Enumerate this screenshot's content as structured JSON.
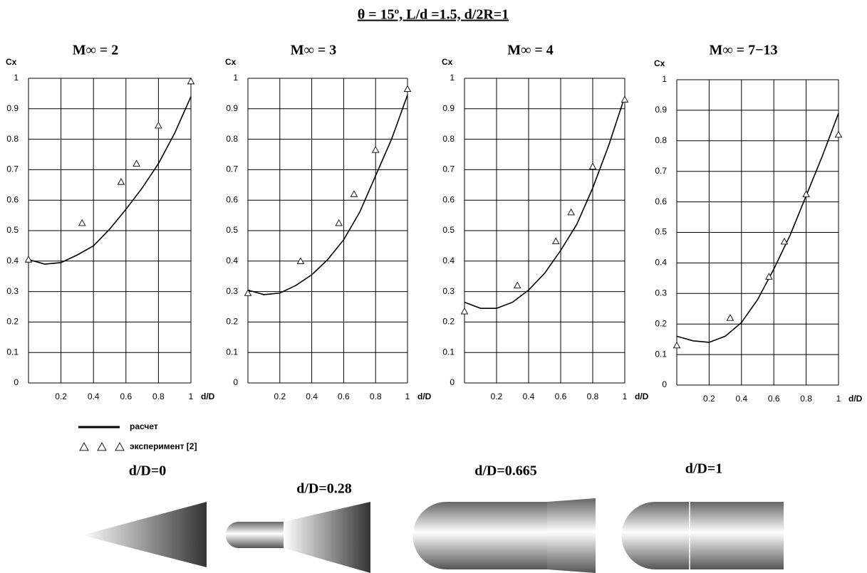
{
  "title": "θ = 15º, L/d =1.5, d/2R=1",
  "chart_data": [
    {
      "type": "line",
      "title": "M∞ = 2",
      "ylabel": "Cx",
      "xlabel": "d/D",
      "xlim": [
        0,
        1
      ],
      "ylim": [
        0,
        1
      ],
      "xticks": [
        0.2,
        0.4,
        0.6,
        0.8,
        1
      ],
      "yticks": [
        0,
        0.1,
        0.2,
        0.3,
        0.4,
        0.5,
        0.6,
        0.7,
        0.8,
        0.9,
        1
      ],
      "grid": true,
      "series": [
        {
          "style": "line",
          "color": "#000000",
          "x": [
            0,
            0.1,
            0.2,
            0.3,
            0.4,
            0.5,
            0.6,
            0.7,
            0.8,
            0.9,
            1
          ],
          "values": [
            0.405,
            0.39,
            0.395,
            0.42,
            0.45,
            0.505,
            0.57,
            0.64,
            0.72,
            0.82,
            0.94
          ]
        },
        {
          "style": "triangle",
          "color": "#000000",
          "x": [
            0,
            0.33,
            0.57,
            0.665,
            0.8,
            1
          ],
          "values": [
            0.405,
            0.525,
            0.66,
            0.72,
            0.845,
            0.99
          ]
        }
      ]
    },
    {
      "type": "line",
      "title": "M∞ = 3",
      "ylabel": "Cx",
      "xlabel": "d/D",
      "xlim": [
        0,
        1
      ],
      "ylim": [
        0,
        1
      ],
      "xticks": [
        0.2,
        0.4,
        0.6,
        0.8,
        1
      ],
      "yticks": [
        0,
        0.1,
        0.2,
        0.3,
        0.4,
        0.5,
        0.6,
        0.7,
        0.8,
        0.9,
        1
      ],
      "grid": true,
      "series": [
        {
          "style": "line",
          "color": "#000000",
          "x": [
            0,
            0.1,
            0.2,
            0.3,
            0.4,
            0.5,
            0.6,
            0.7,
            0.8,
            0.9,
            1
          ],
          "values": [
            0.305,
            0.29,
            0.295,
            0.32,
            0.355,
            0.405,
            0.47,
            0.56,
            0.68,
            0.8,
            0.945
          ]
        },
        {
          "style": "triangle",
          "color": "#000000",
          "x": [
            0,
            0.33,
            0.57,
            0.665,
            0.8,
            1
          ],
          "values": [
            0.295,
            0.4,
            0.525,
            0.62,
            0.765,
            0.965
          ]
        }
      ]
    },
    {
      "type": "line",
      "title": "M∞ = 4",
      "ylabel": "Cx",
      "xlabel": "d/D",
      "xlim": [
        0,
        1
      ],
      "ylim": [
        0,
        1
      ],
      "xticks": [
        0.2,
        0.4,
        0.6,
        0.8,
        1
      ],
      "yticks": [
        0,
        0.1,
        0.2,
        0.3,
        0.4,
        0.5,
        0.6,
        0.7,
        0.8,
        0.9,
        1
      ],
      "grid": true,
      "series": [
        {
          "style": "line",
          "color": "#000000",
          "x": [
            0,
            0.1,
            0.2,
            0.3,
            0.4,
            0.5,
            0.6,
            0.7,
            0.8,
            0.9,
            1
          ],
          "values": [
            0.265,
            0.245,
            0.245,
            0.265,
            0.305,
            0.36,
            0.435,
            0.52,
            0.64,
            0.78,
            0.94
          ]
        },
        {
          "style": "triangle",
          "color": "#000000",
          "x": [
            0,
            0.33,
            0.57,
            0.665,
            0.8,
            1
          ],
          "values": [
            0.235,
            0.32,
            0.465,
            0.56,
            0.71,
            0.93
          ]
        }
      ]
    },
    {
      "type": "line",
      "title": "M∞ = 7−13",
      "ylabel": "Cx",
      "xlabel": "d/D",
      "xlim": [
        0,
        1
      ],
      "ylim": [
        0,
        1
      ],
      "xticks": [
        0.2,
        0.4,
        0.6,
        0.8,
        1
      ],
      "yticks": [
        0,
        0.1,
        0.2,
        0.3,
        0.4,
        0.5,
        0.6,
        0.7,
        0.8,
        0.9,
        1
      ],
      "grid": true,
      "series": [
        {
          "style": "line",
          "color": "#000000",
          "x": [
            0,
            0.1,
            0.2,
            0.3,
            0.4,
            0.5,
            0.6,
            0.7,
            0.8,
            0.9,
            1
          ],
          "values": [
            0.16,
            0.145,
            0.14,
            0.16,
            0.205,
            0.28,
            0.38,
            0.49,
            0.62,
            0.75,
            0.89
          ]
        },
        {
          "style": "triangle",
          "color": "#000000",
          "x": [
            0,
            0.33,
            0.57,
            0.665,
            0.8,
            1
          ],
          "values": [
            0.13,
            0.22,
            0.355,
            0.47,
            0.625,
            0.82
          ]
        }
      ]
    }
  ],
  "legend": [
    {
      "label": "расчет",
      "style": "line"
    },
    {
      "label": "эксперимент [2]",
      "style": "triangle"
    }
  ],
  "shapes": [
    {
      "label": "d/D=0"
    },
    {
      "label": "d/D=0.28"
    },
    {
      "label": "d/D=0.665"
    },
    {
      "label": "d/D=1"
    }
  ]
}
